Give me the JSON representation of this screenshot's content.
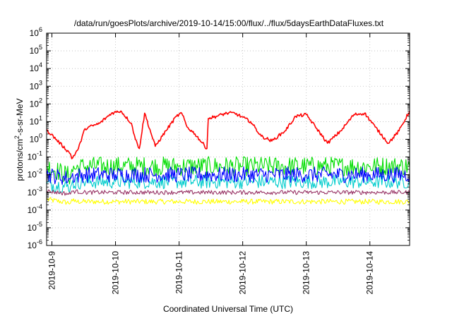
{
  "chart_data": {
    "type": "line",
    "title": "/data/run/goesPlots/archive/2019-10-14/15:00/flux/../flux/5daysEarthDataFluxes.txt",
    "xlabel": "Coordinated Universal Time (UTC)",
    "ylabel_base": "protons/cm",
    "ylabel_exp": "2",
    "ylabel_tail": "-s-sr-MeV",
    "x_type": "date",
    "xlim": [
      "2019-10-08T22:00",
      "2019-10-14T15:00"
    ],
    "x_ticks": [
      "2019-10-9",
      "2019-10-10",
      "2019-10-11",
      "2019-10-12",
      "2019-10-13",
      "2019-10-14"
    ],
    "y_scale": "log",
    "ylim": [
      1e-06,
      1000000.0
    ],
    "y_ticks": [
      {
        "base": "10",
        "exp": "-6"
      },
      {
        "base": "10",
        "exp": "-5"
      },
      {
        "base": "10",
        "exp": "-4"
      },
      {
        "base": "10",
        "exp": "-3"
      },
      {
        "base": "10",
        "exp": "-2"
      },
      {
        "base": "10",
        "exp": "-1"
      },
      {
        "base": "10",
        "exp": "0"
      },
      {
        "base": "10",
        "exp": "1"
      },
      {
        "base": "10",
        "exp": "2"
      },
      {
        "base": "10",
        "exp": "3"
      },
      {
        "base": "10",
        "exp": "4"
      },
      {
        "base": "10",
        "exp": "5"
      },
      {
        "base": "10",
        "exp": "6"
      }
    ],
    "grid": true,
    "legend": "none",
    "series": [
      {
        "color": "#ffff00",
        "x": [
          "2019-10-08T22:00",
          "2019-10-09T07:00",
          "2019-10-09T07:30",
          "2019-10-09T08:30",
          "2019-10-10T00:00",
          "2019-10-11T00:00",
          "2019-10-12T00:00",
          "2019-10-13T00:00",
          "2019-10-14T00:00",
          "2019-10-14T15:00"
        ],
        "y": [
          0.0004,
          0.00025,
          0.0004,
          0.0003,
          0.0003,
          0.0003,
          0.0003,
          0.0003,
          0.0003,
          0.0003
        ]
      },
      {
        "color": "#00dd00",
        "x": [
          "2019-10-08T22:00",
          "2019-10-09T07:00",
          "2019-10-09T07:30",
          "2019-10-09T12:00",
          "2019-10-10T00:00",
          "2019-10-11T00:00",
          "2019-10-12T00:00",
          "2019-10-13T00:00",
          "2019-10-14T00:00",
          "2019-10-14T15:00"
        ],
        "y": [
          0.03,
          0.008,
          0.02,
          0.03,
          0.03,
          0.03,
          0.03,
          0.03,
          0.03,
          0.03
        ]
      },
      {
        "color": "#00cccc",
        "x": [
          "2019-10-08T22:00",
          "2019-10-09T07:00",
          "2019-10-09T07:30",
          "2019-10-09T12:00",
          "2019-10-10T00:00",
          "2019-10-11T00:00",
          "2019-10-12T00:00",
          "2019-10-13T00:00",
          "2019-10-14T00:00",
          "2019-10-14T15:00"
        ],
        "y": [
          0.003,
          0.002,
          0.003,
          0.004,
          0.004,
          0.004,
          0.004,
          0.004,
          0.004,
          0.004
        ]
      },
      {
        "color": "#0000ff",
        "x": [
          "2019-10-08T22:00",
          "2019-10-09T07:00",
          "2019-10-09T07:30",
          "2019-10-09T12:00",
          "2019-10-10T00:00",
          "2019-10-11T00:00",
          "2019-10-12T00:00",
          "2019-10-13T00:00",
          "2019-10-14T00:00",
          "2019-10-14T15:00"
        ],
        "y": [
          0.01,
          0.006,
          0.008,
          0.01,
          0.01,
          0.01,
          0.01,
          0.01,
          0.01,
          0.01
        ]
      },
      {
        "color": "#993366",
        "x": [
          "2019-10-08T22:00",
          "2019-10-09T07:00",
          "2019-10-09T07:30",
          "2019-10-09T12:00",
          "2019-10-10T00:00",
          "2019-10-11T00:00",
          "2019-10-12T00:00",
          "2019-10-13T00:00",
          "2019-10-14T00:00",
          "2019-10-14T15:00"
        ],
        "y": [
          0.0012,
          0.0008,
          0.0012,
          0.001,
          0.001,
          0.001,
          0.001,
          0.001,
          0.001,
          0.001
        ]
      },
      {
        "color": "#ff0000",
        "x": [
          "2019-10-08T22:00",
          "2019-10-09T07:00",
          "2019-10-09T07:30",
          "2019-10-09T10:00",
          "2019-10-09T12:30",
          "2019-10-09T18:00",
          "2019-10-09T22:30",
          "2019-10-10T02:00",
          "2019-10-10T06:00",
          "2019-10-10T07:30",
          "2019-10-10T09:00",
          "2019-10-10T11:00",
          "2019-10-10T15:00",
          "2019-10-10T19:00",
          "2019-10-10T23:00",
          "2019-10-11T01:00",
          "2019-10-11T03:00",
          "2019-10-11T06:00",
          "2019-10-11T10:30",
          "2019-10-11T11:00",
          "2019-10-11T14:00",
          "2019-10-11T18:00",
          "2019-10-11T21:00",
          "2019-10-12T03:00",
          "2019-10-12T07:00",
          "2019-10-12T11:00",
          "2019-10-12T16:00",
          "2019-10-12T20:00",
          "2019-10-13T00:00",
          "2019-10-13T04:00",
          "2019-10-13T08:00",
          "2019-10-13T13:00",
          "2019-10-13T18:00",
          "2019-10-13T22:00",
          "2019-10-14T02:00",
          "2019-10-14T07:00",
          "2019-10-14T11:00",
          "2019-10-14T15:00"
        ],
        "y": [
          3.5,
          0.15,
          0.08,
          0.3,
          4,
          8,
          30,
          40,
          8,
          1,
          0.3,
          30,
          0.4,
          3,
          20,
          30,
          5,
          2,
          0.3,
          15,
          20,
          30,
          30,
          10,
          1.5,
          0.8,
          3,
          20,
          25,
          4,
          0.6,
          3,
          25,
          30,
          5,
          0.6,
          3,
          40
        ]
      }
    ]
  }
}
